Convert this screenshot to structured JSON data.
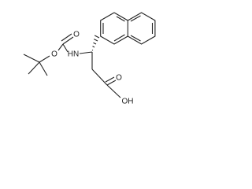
{
  "labels": [
    "O",
    "O",
    "HN",
    "O",
    "OH"
  ]
}
